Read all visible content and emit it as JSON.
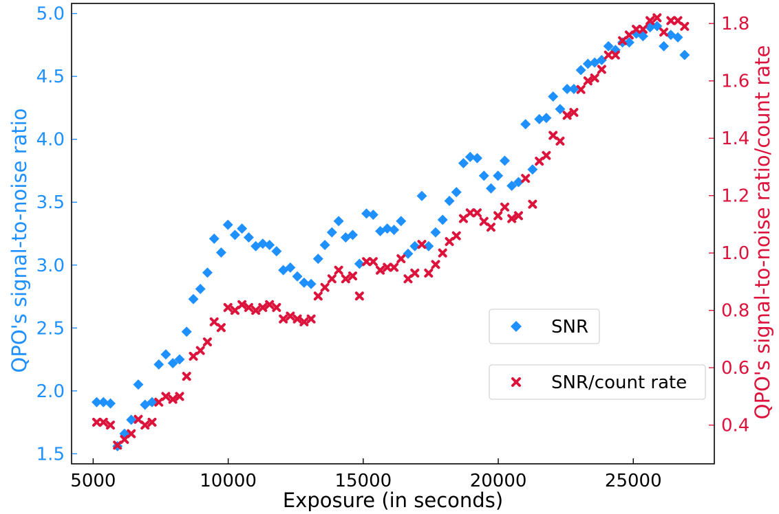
{
  "chart_data": {
    "type": "scatter",
    "xlabel": "Exposure (in seconds)",
    "ylabel_left": "QPO's signal-to-noise ratio",
    "ylabel_right": "QPO's signal-to-noise ratio/count rate",
    "xlim": [
      4200,
      28000
    ],
    "ylim_left": [
      1.42,
      5.08
    ],
    "ylim_right": [
      0.265,
      1.87
    ],
    "x_ticks": [
      5000,
      10000,
      15000,
      20000,
      25000
    ],
    "y_left_ticks": [
      1.5,
      2.0,
      2.5,
      3.0,
      3.5,
      4.0,
      4.5,
      5.0
    ],
    "y_right_ticks": [
      0.4,
      0.6,
      0.8,
      1.0,
      1.2,
      1.4,
      1.6,
      1.8
    ],
    "legend_position": "lower-right",
    "grid": false,
    "colors": {
      "snr": "#1e90ff",
      "ratio": "#dc143c",
      "axes": "#000000"
    },
    "series": [
      {
        "name": "SNR",
        "axis": "left",
        "marker": "diamond",
        "color": "#1e90ff",
        "x": [
          5130,
          5380,
          5640,
          5900,
          6160,
          6410,
          6670,
          6920,
          7180,
          7430,
          7690,
          7950,
          8200,
          8460,
          8710,
          8970,
          9230,
          9480,
          9740,
          9990,
          10250,
          10510,
          10760,
          11020,
          11280,
          11530,
          11790,
          12040,
          12300,
          12560,
          12810,
          13070,
          13330,
          13580,
          13840,
          14090,
          14350,
          14610,
          14860,
          15120,
          15370,
          15630,
          15890,
          16140,
          16400,
          16660,
          16910,
          17170,
          17420,
          17680,
          17940,
          18190,
          18450,
          18710,
          18960,
          19220,
          19470,
          19730,
          19990,
          20240,
          20500,
          20750,
          21010,
          21270,
          21520,
          21780,
          22030,
          22290,
          22550,
          22800,
          23060,
          23320,
          23570,
          23830,
          24080,
          24340,
          24600,
          24850,
          25110,
          25360,
          25620,
          25880,
          26130,
          26390,
          26650,
          26900
        ],
        "y": [
          1.91,
          1.91,
          1.9,
          1.56,
          1.66,
          1.77,
          2.05,
          1.89,
          1.91,
          2.21,
          2.29,
          2.22,
          2.25,
          2.47,
          2.73,
          2.81,
          2.94,
          3.21,
          3.1,
          3.32,
          3.24,
          3.29,
          3.22,
          3.15,
          3.17,
          3.16,
          3.11,
          2.96,
          2.98,
          2.91,
          2.86,
          2.85,
          3.05,
          3.16,
          3.26,
          3.35,
          3.22,
          3.24,
          3.01,
          3.41,
          3.4,
          3.27,
          3.29,
          3.28,
          3.35,
          3.09,
          3.15,
          3.55,
          3.15,
          3.26,
          3.36,
          3.51,
          3.58,
          3.81,
          3.86,
          3.85,
          3.71,
          3.61,
          3.71,
          3.83,
          3.63,
          3.66,
          4.12,
          3.76,
          4.16,
          4.17,
          4.34,
          4.24,
          4.4,
          4.4,
          4.55,
          4.6,
          4.61,
          4.63,
          4.74,
          4.71,
          4.77,
          4.77,
          4.84,
          4.82,
          4.89,
          4.9,
          4.74,
          4.83,
          4.81,
          4.67
        ]
      },
      {
        "name": "SNR/count rate",
        "axis": "right",
        "marker": "x",
        "color": "#dc143c",
        "x": [
          5130,
          5380,
          5640,
          5900,
          6160,
          6410,
          6670,
          6920,
          7180,
          7430,
          7690,
          7950,
          8200,
          8460,
          8710,
          8970,
          9230,
          9480,
          9740,
          9990,
          10250,
          10510,
          10760,
          11020,
          11280,
          11530,
          11790,
          12040,
          12300,
          12560,
          12810,
          13070,
          13330,
          13580,
          13840,
          14090,
          14350,
          14610,
          14860,
          15120,
          15370,
          15630,
          15890,
          16140,
          16400,
          16660,
          16910,
          17170,
          17420,
          17680,
          17940,
          18190,
          18450,
          18710,
          18960,
          19220,
          19470,
          19730,
          19990,
          20240,
          20500,
          20750,
          21010,
          21270,
          21520,
          21780,
          22030,
          22290,
          22550,
          22800,
          23060,
          23320,
          23570,
          23830,
          24080,
          24340,
          24600,
          24850,
          25110,
          25360,
          25620,
          25880,
          26130,
          26390,
          26650,
          26900
        ],
        "y": [
          0.41,
          0.41,
          0.4,
          0.33,
          0.35,
          0.37,
          0.42,
          0.4,
          0.41,
          0.48,
          0.5,
          0.49,
          0.5,
          0.57,
          0.64,
          0.66,
          0.69,
          0.76,
          0.74,
          0.81,
          0.8,
          0.82,
          0.81,
          0.8,
          0.81,
          0.82,
          0.81,
          0.77,
          0.78,
          0.77,
          0.76,
          0.77,
          0.85,
          0.88,
          0.91,
          0.94,
          0.91,
          0.92,
          0.85,
          0.97,
          0.97,
          0.94,
          0.95,
          0.95,
          0.98,
          0.91,
          0.93,
          1.03,
          0.93,
          0.96,
          1.0,
          1.04,
          1.06,
          1.12,
          1.14,
          1.14,
          1.11,
          1.09,
          1.13,
          1.16,
          1.12,
          1.13,
          1.26,
          1.17,
          1.32,
          1.34,
          1.41,
          1.39,
          1.48,
          1.49,
          1.57,
          1.6,
          1.61,
          1.64,
          1.69,
          1.69,
          1.74,
          1.76,
          1.78,
          1.78,
          1.81,
          1.82,
          1.77,
          1.81,
          1.81,
          1.79
        ]
      }
    ]
  }
}
